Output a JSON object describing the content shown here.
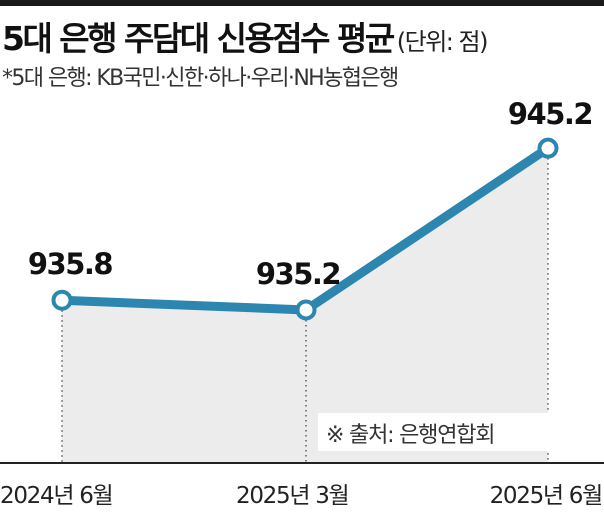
{
  "header": {
    "title": "5대 은행 주담대 신용점수 평균",
    "unit": "(단위: 점)",
    "subtitle": "*5대 은행: KB국민·신한·하나·우리·NH농협은행"
  },
  "source": "※ 출처: 은행연합회",
  "colors": {
    "line": "#2d86b0",
    "area": "#ececec",
    "marker_fill": "#ffffff",
    "text": "#111111"
  },
  "chart_data": {
    "type": "line",
    "title": "5대 은행 주담대 신용점수 평균",
    "ylabel": "",
    "xlabel": "",
    "categories": [
      "2024년 6월",
      "2025년 3월",
      "2025년 6월"
    ],
    "series": [
      {
        "values": [
          935.8,
          935.2,
          945.2
        ]
      }
    ],
    "data_labels": [
      "935.8",
      "935.2",
      "945.2"
    ],
    "ylim": [
      925.8,
      946.2
    ],
    "grid": false,
    "legend": "none",
    "area_fill": true,
    "markers": "hollow-circle"
  }
}
